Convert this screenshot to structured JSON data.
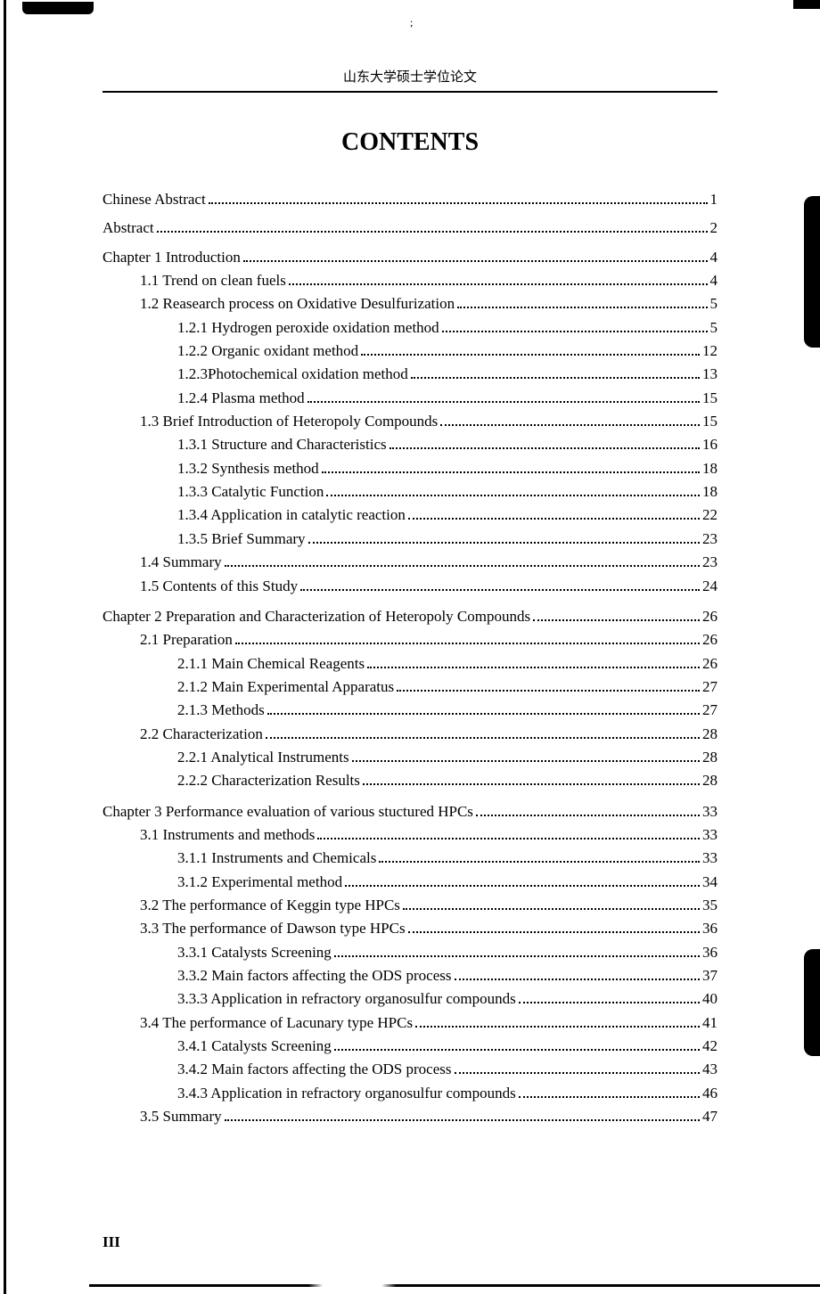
{
  "header": "山东大学硕士学位论文",
  "title": "CONTENTS",
  "page_number": "III",
  "toc": [
    {
      "label": "Chinese Abstract",
      "page": "1",
      "level": 0
    },
    {
      "label": "Abstract",
      "page": "2",
      "level": 0
    },
    {
      "label": "Chapter 1 Introduction",
      "page": "4",
      "level": 0
    },
    {
      "label": "1.1 Trend on clean fuels",
      "page": "4",
      "level": 1
    },
    {
      "label": "1.2 Reasearch process on Oxidative Desulfurization",
      "page": "5",
      "level": 1
    },
    {
      "label": "1.2.1 Hydrogen peroxide oxidation method",
      "page": "5",
      "level": 2
    },
    {
      "label": "1.2.2 Organic oxidant method",
      "page": "12",
      "level": 2
    },
    {
      "label": "1.2.3Photochemical oxidation method",
      "page": "13",
      "level": 2
    },
    {
      "label": "1.2.4 Plasma method",
      "page": "15",
      "level": 2
    },
    {
      "label": "1.3 Brief Introduction of Heteropoly Compounds",
      "page": "15",
      "level": 1
    },
    {
      "label": "1.3.1 Structure and Characteristics",
      "page": "16",
      "level": 2
    },
    {
      "label": "1.3.2 Synthesis method",
      "page": "18",
      "level": 2
    },
    {
      "label": "1.3.3 Catalytic Function",
      "page": "18",
      "level": 2
    },
    {
      "label": "1.3.4 Application in catalytic reaction",
      "page": "22",
      "level": 2
    },
    {
      "label": "1.3.5 Brief Summary",
      "page": "23",
      "level": 2
    },
    {
      "label": "1.4 Summary",
      "page": "23",
      "level": 1
    },
    {
      "label": "1.5 Contents of this Study",
      "page": "24",
      "level": 1
    },
    {
      "label": "Chapter 2 Preparation and Characterization of Heteropoly Compounds",
      "page": "26",
      "level": 0,
      "gap": true
    },
    {
      "label": "2.1 Preparation",
      "page": "26",
      "level": 1
    },
    {
      "label": "2.1.1 Main Chemical Reagents",
      "page": "26",
      "level": 2
    },
    {
      "label": "2.1.2 Main Experimental Apparatus",
      "page": "27",
      "level": 2
    },
    {
      "label": "2.1.3 Methods",
      "page": "27",
      "level": 2
    },
    {
      "label": "2.2 Characterization",
      "page": "28",
      "level": 1
    },
    {
      "label": "2.2.1 Analytical Instruments",
      "page": "28",
      "level": 2
    },
    {
      "label": "2.2.2 Characterization Results",
      "page": "28",
      "level": 2
    },
    {
      "label": "Chapter 3 Performance evaluation of various stuctured HPCs",
      "page": "33",
      "level": 0,
      "gap": true
    },
    {
      "label": "3.1 Instruments and methods",
      "page": "33",
      "level": 1
    },
    {
      "label": "3.1.1 Instruments and Chemicals",
      "page": "33",
      "level": 2
    },
    {
      "label": "3.1.2 Experimental method",
      "page": "34",
      "level": 2
    },
    {
      "label": "3.2 The performance of Keggin type HPCs",
      "page": "35",
      "level": 1
    },
    {
      "label": "3.3 The performance of Dawson type HPCs",
      "page": "36",
      "level": 1
    },
    {
      "label": "3.3.1 Catalysts Screening",
      "page": "36",
      "level": 2
    },
    {
      "label": "3.3.2 Main factors affecting the ODS process",
      "page": "37",
      "level": 2
    },
    {
      "label": "3.3.3 Application in refractory organosulfur compounds",
      "page": "40",
      "level": 2
    },
    {
      "label": "3.4 The performance of Lacunary type HPCs",
      "page": "41",
      "level": 1
    },
    {
      "label": "3.4.1 Catalysts Screening",
      "page": "42",
      "level": 2
    },
    {
      "label": "3.4.2 Main factors affecting the ODS process",
      "page": "43",
      "level": 2
    },
    {
      "label": "3.4.3 Application in refractory organosulfur compounds",
      "page": "46",
      "level": 2
    },
    {
      "label": "3.5 Summary",
      "page": "47",
      "level": 1
    }
  ]
}
